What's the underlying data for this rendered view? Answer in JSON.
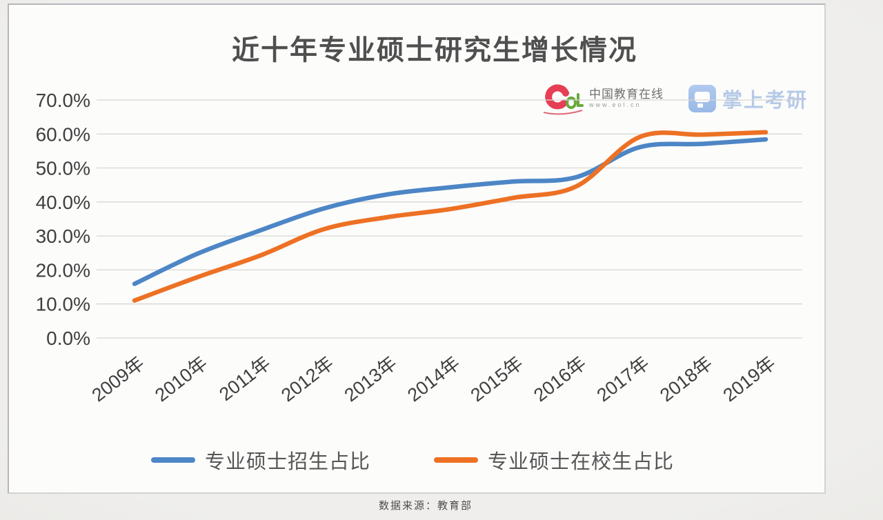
{
  "title": "近十年专业硕士研究生增长情况",
  "source_note": "数据来源：教育部",
  "branding": {
    "eol_name": "中国教育在线",
    "eol_url": "www.eol.cn",
    "eol_red": "#e63e54",
    "eol_green": "#6aa83c",
    "kaoyan_name": "掌上考研",
    "kaoyan_color": "#a2bbe2"
  },
  "chart_data": {
    "type": "line",
    "title": "近十年专业硕士研究生增长情况",
    "categories": [
      "2009年",
      "2010年",
      "2011年",
      "2012年",
      "2013年",
      "2014年",
      "2015年",
      "2016年",
      "2017年",
      "2018年",
      "2019年"
    ],
    "series": [
      {
        "name": "专业硕士招生占比",
        "color": "#4d86c6",
        "values": [
          15.9,
          24.8,
          31.7,
          38.1,
          42.2,
          44.3,
          46.0,
          47.3,
          56.1,
          57.1,
          58.4
        ]
      },
      {
        "name": "专业硕士在校生占比",
        "color": "#ed7124",
        "values": [
          11.0,
          17.9,
          24.3,
          32.0,
          35.5,
          37.9,
          41.2,
          44.6,
          59.1,
          59.8,
          60.5
        ]
      }
    ],
    "xlabel": "",
    "ylabel": "",
    "ylim": [
      0,
      70
    ],
    "y_tick_step": 10,
    "y_tick_suffix": "%",
    "y_tick_decimals": 1,
    "y_tick_labels": [
      "0.0%",
      "10.0%",
      "20.0%",
      "30.0%",
      "40.0%",
      "50.0%",
      "60.0%",
      "70.0%"
    ],
    "grid": "horizontal",
    "smoothed": true,
    "x_label_rotation_deg": -38,
    "legend_position": "bottom"
  }
}
